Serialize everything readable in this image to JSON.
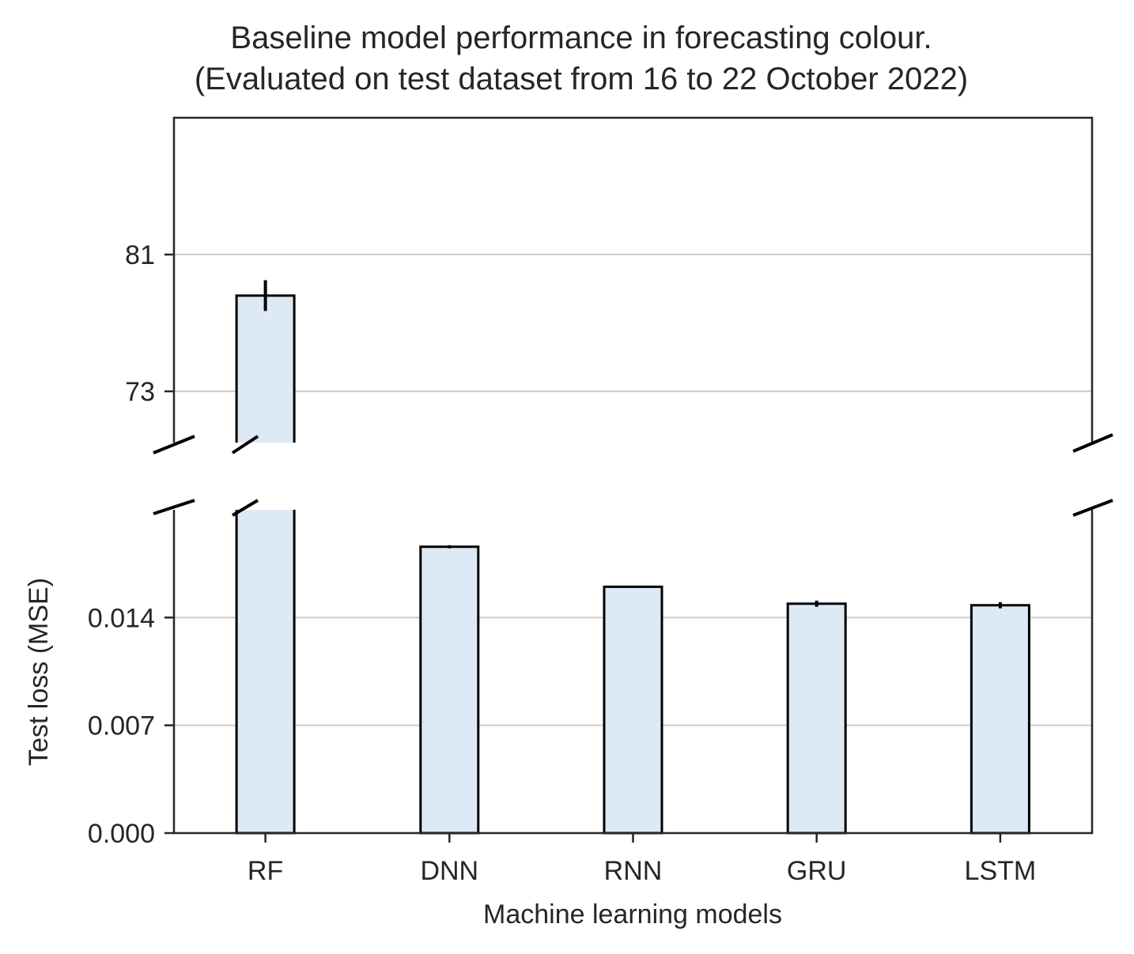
{
  "chart_data": {
    "type": "bar",
    "title": "Baseline model performance in forecasting colour.",
    "subtitle": "(Evaluated on test dataset from 16 to 22 October 2022)",
    "xlabel": "Machine learning models",
    "ylabel": "Test loss (MSE)",
    "categories": [
      "RF",
      "DNN",
      "RNN",
      "GRU",
      "LSTM"
    ],
    "values": [
      78.6,
      0.0186,
      0.016,
      0.0149,
      0.0148
    ],
    "errors": [
      0.9,
      0.0001,
      0.0,
      0.0002,
      0.0002
    ],
    "broken_axis": true,
    "upper_panel": {
      "ylim": [
        70,
        89
      ],
      "yticks": [
        73,
        81
      ],
      "ytick_labels": [
        "73",
        "81"
      ]
    },
    "lower_panel": {
      "ylim": [
        0,
        0.021
      ],
      "yticks": [
        0.0,
        0.007,
        0.014
      ],
      "ytick_labels": [
        "0.000",
        "0.007",
        "0.014"
      ]
    },
    "grid": "horizontal",
    "bar_color": "#dde9f5",
    "edge_color": "#000000"
  }
}
